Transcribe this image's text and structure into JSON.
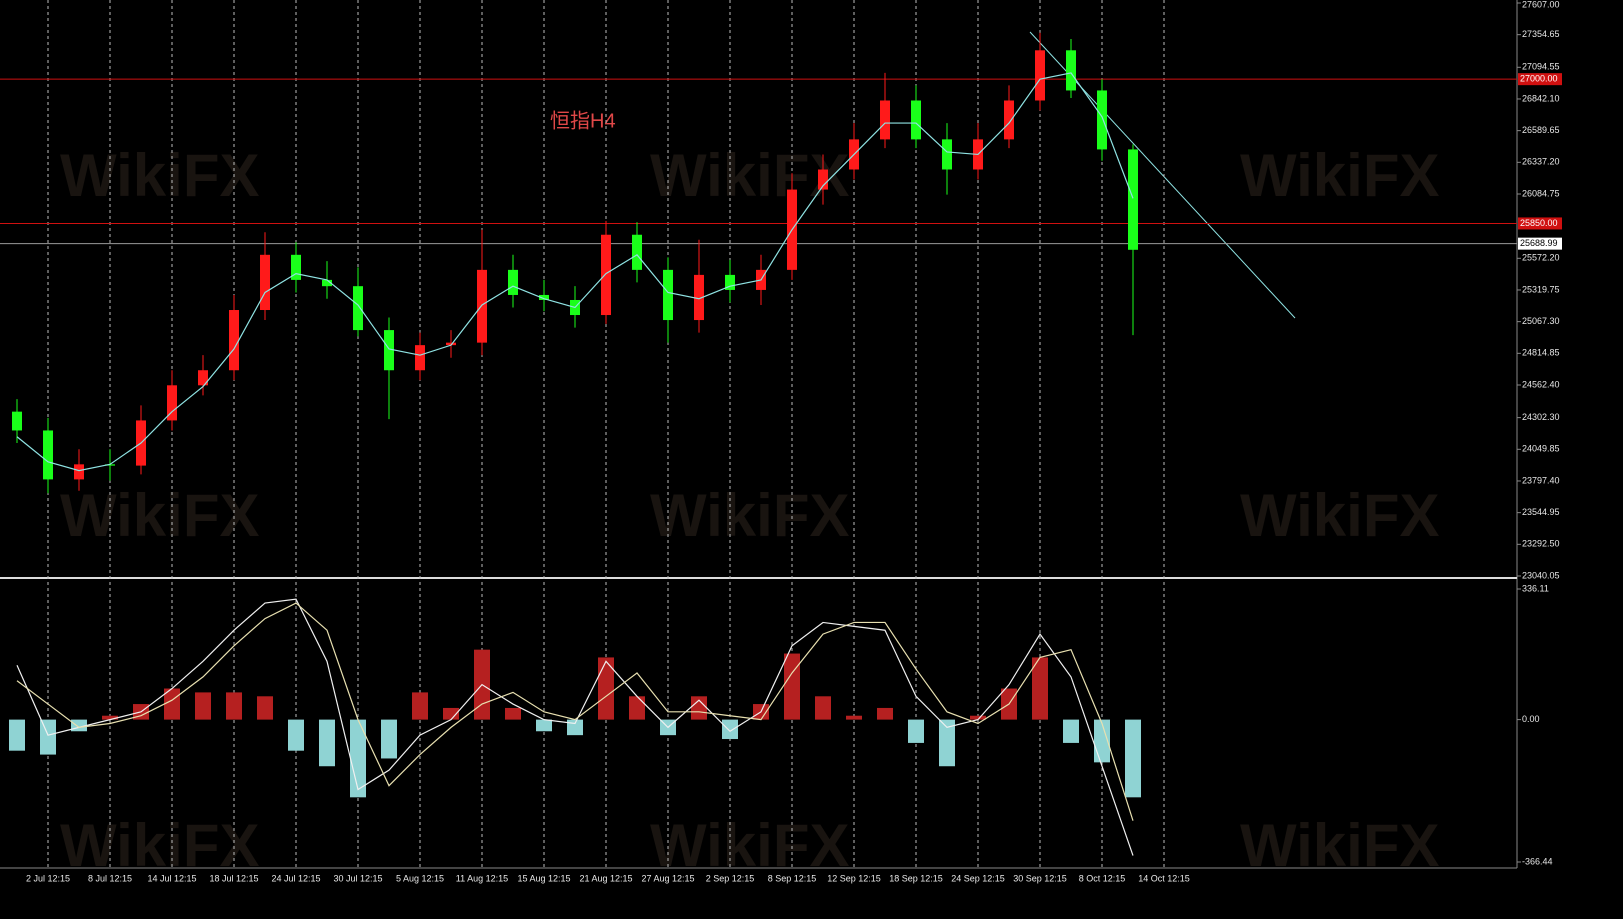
{
  "watermark": "WikiFX",
  "chart_data": {
    "type": "candlestick",
    "title": "恒指H4",
    "categories": [
      null,
      "2 Jul 12:15",
      null,
      "8 Jul 12:15",
      null,
      "14 Jul 12:15",
      null,
      "18 Jul 12:15",
      null,
      "24 Jul 12:15",
      null,
      "30 Jul 12:15",
      null,
      "5 Aug 12:15",
      null,
      "11 Aug 12:15",
      null,
      "15 Aug 12:15",
      null,
      "21 Aug 12:15",
      null,
      "27 Aug 12:15",
      null,
      "2 Sep 12:15",
      null,
      "8 Sep 12:15",
      null,
      "12 Sep 12:15",
      null,
      "18 Sep 12:15",
      null,
      "24 Sep 12:15",
      null,
      "30 Sep 12:15",
      null,
      "8 Oct 12:15",
      null,
      "14 Oct 12:15"
    ],
    "open": [
      24350,
      24200,
      23810,
      23930,
      23920,
      24280,
      24560,
      24680,
      25160,
      25600,
      25400,
      25350,
      25000,
      24680,
      24880,
      24900,
      25480,
      25280,
      25240,
      25120,
      25760,
      25480,
      25080,
      25440,
      25320,
      25480,
      26120,
      26280,
      26520,
      26830,
      26520,
      26280,
      26520,
      26830,
      27230,
      26910,
      26440,
      null
    ],
    "high": [
      24450,
      24300,
      24050,
      24050,
      24400,
      24680,
      24800,
      25280,
      25780,
      25700,
      25550,
      25500,
      25100,
      24980,
      25000,
      25800,
      25600,
      25400,
      25350,
      25870,
      25860,
      25580,
      25720,
      25560,
      25600,
      26250,
      26400,
      26650,
      27050,
      26950,
      26650,
      26650,
      26950,
      27370,
      27320,
      27000,
      26480,
      null
    ],
    "low": [
      24100,
      23700,
      23720,
      23800,
      23850,
      24200,
      24480,
      24600,
      25080,
      25300,
      25250,
      24950,
      24290,
      24600,
      24780,
      24800,
      25180,
      25150,
      25020,
      25050,
      25380,
      24900,
      24980,
      25220,
      25200,
      25400,
      26000,
      26200,
      26450,
      26450,
      26080,
      26200,
      26450,
      26750,
      26850,
      26350,
      24960,
      null
    ],
    "close": [
      24200,
      23810,
      23930,
      23920,
      24280,
      24560,
      24680,
      25160,
      25600,
      25400,
      25350,
      25000,
      24680,
      24880,
      24900,
      25480,
      25280,
      25240,
      25120,
      25760,
      25480,
      25080,
      25440,
      25320,
      25480,
      26120,
      26280,
      26520,
      26830,
      26520,
      26280,
      26520,
      26830,
      27230,
      26910,
      26440,
      25640,
      null
    ],
    "up_color": "#ff1a1a",
    "down_color": "#1aff1a",
    "lines": [
      {
        "color": "#8fe3e3",
        "values": [
          24150,
          23950,
          23880,
          23930,
          24100,
          24350,
          24550,
          24850,
          25300,
          25450,
          25400,
          25200,
          24850,
          24800,
          24880,
          25200,
          25350,
          25250,
          25180,
          25450,
          25600,
          25300,
          25250,
          25350,
          25400,
          25800,
          26150,
          26400,
          26650,
          26650,
          26420,
          26400,
          26650,
          27000,
          27050,
          26700,
          26050,
          null
        ]
      }
    ],
    "ylim": [
      23040.05,
      27607
    ],
    "yticks": [
      {
        "value": 27607,
        "label": "27607.00"
      },
      27354.65,
      27094.55,
      {
        "value": 26842.1,
        "label": "26842.10"
      },
      26589.65,
      {
        "value": 26337.2,
        "label": "26337.20"
      },
      26084.75,
      {
        "value": 25572.2,
        "label": "25572.20"
      },
      25319.75,
      {
        "value": 25067.3,
        "label": "25067.30"
      },
      24814.85,
      {
        "value": 24562.4,
        "label": "24562.40"
      },
      {
        "value": 24302.3,
        "label": "24302.30"
      },
      24049.85,
      {
        "value": 23797.4,
        "label": "23797.40"
      },
      23544.95,
      {
        "value": 23292.5,
        "label": "23292.50"
      },
      23040.05
    ],
    "hlines": {
      "values": [
        27000,
        25850,
        25688.99
      ],
      "value_labels": [
        "27000.00",
        "25850.00",
        "25688.99"
      ],
      "colors": [
        "#d01010",
        "#d01010",
        "#9a9a9a"
      ]
    },
    "grid": true,
    "indicator": {
      "type": "macd",
      "histogram": [
        -80,
        -90,
        -30,
        10,
        40,
        80,
        70,
        70,
        60,
        -80,
        -120,
        -200,
        -100,
        70,
        30,
        180,
        30,
        -30,
        -40,
        160,
        60,
        -40,
        60,
        -50,
        40,
        170,
        60,
        10,
        30,
        -60,
        -120,
        10,
        80,
        160,
        -60,
        -110,
        -200,
        null
      ],
      "pos_color": "#b52020",
      "neg_color": "#8fd3d3",
      "lines": [
        {
          "color": "#f0f0f0",
          "values": [
            140,
            -40,
            -20,
            0,
            20,
            80,
            150,
            230,
            300,
            310,
            150,
            -180,
            -130,
            -40,
            0,
            90,
            40,
            0,
            -10,
            150,
            60,
            -20,
            50,
            -30,
            20,
            190,
            250,
            240,
            230,
            60,
            -20,
            0,
            90,
            220,
            110,
            -120,
            -350,
            null
          ]
        },
        {
          "color": "#e8e0b0",
          "values": [
            100,
            40,
            -20,
            -10,
            10,
            50,
            110,
            190,
            260,
            300,
            230,
            0,
            -170,
            -90,
            -20,
            40,
            70,
            20,
            0,
            60,
            120,
            20,
            20,
            10,
            0,
            120,
            220,
            250,
            250,
            130,
            20,
            -10,
            40,
            160,
            180,
            -10,
            -260,
            null
          ]
        }
      ],
      "ylim": [
        -366.44,
        336.11
      ],
      "yticks": [
        336.11,
        {
          "value": 0,
          "label": "0.00"
        },
        -366.44
      ]
    }
  }
}
